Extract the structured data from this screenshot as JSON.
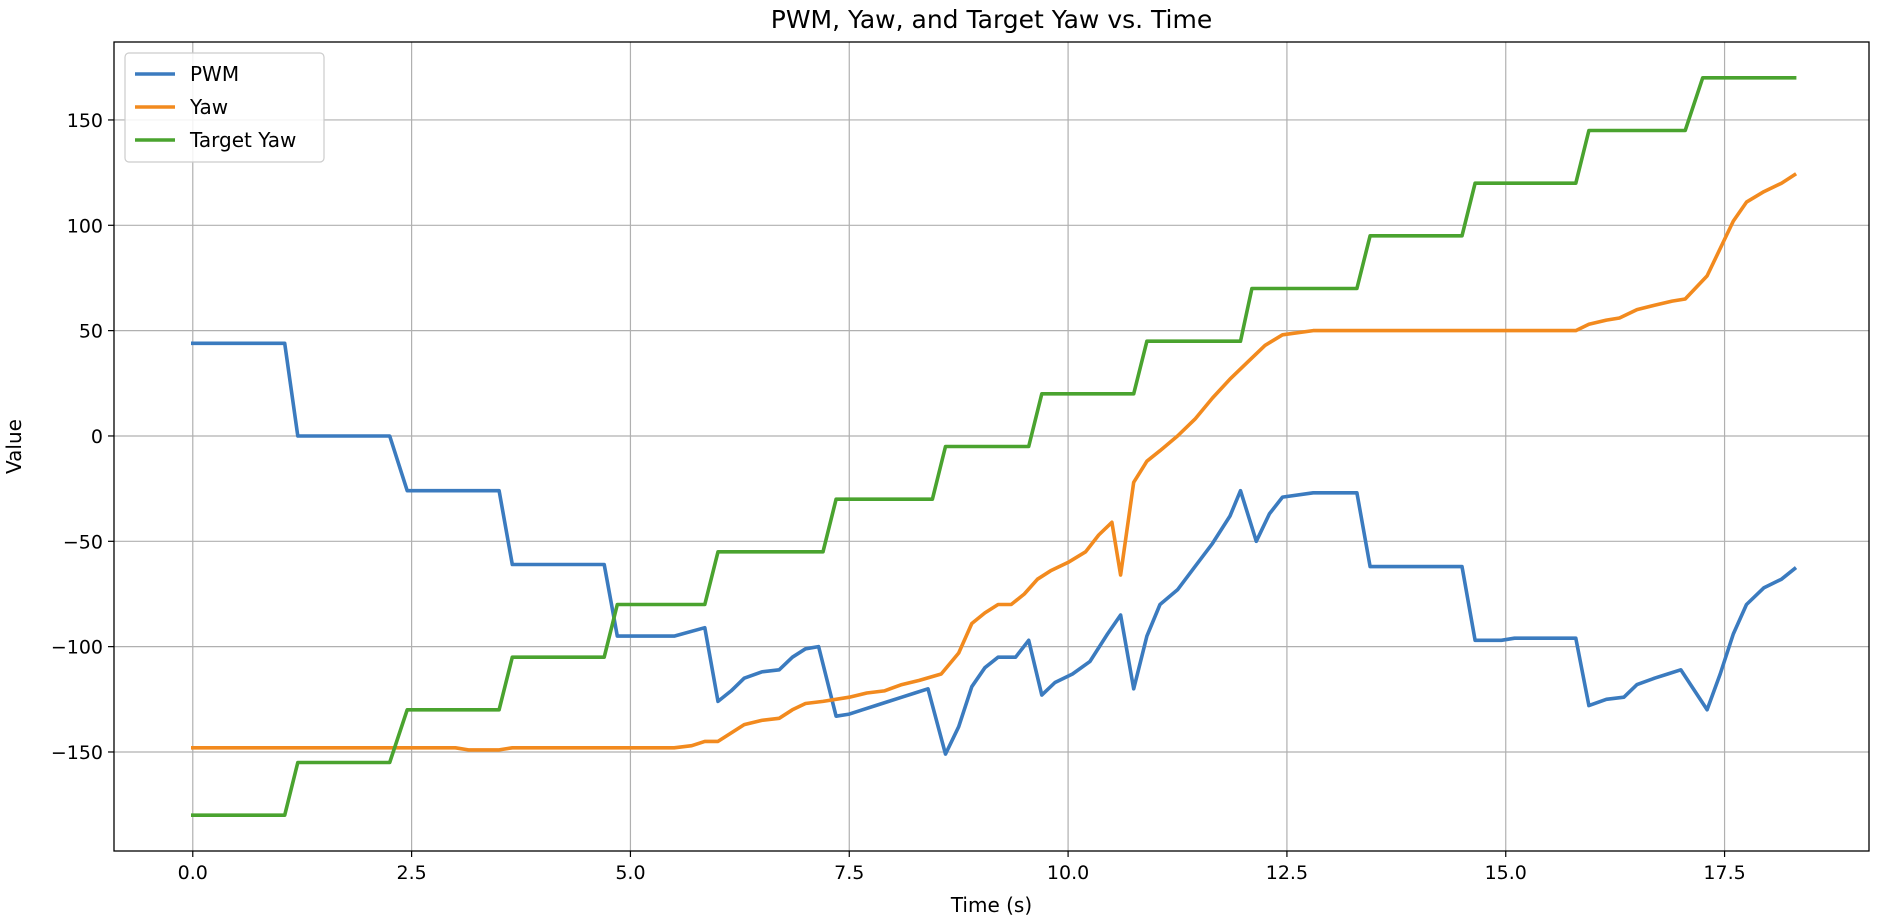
{
  "chart_data": {
    "type": "line",
    "title": "PWM, Yaw, and Target Yaw vs. Time",
    "xlabel": "Time (s)",
    "ylabel": "Value",
    "xlim": [
      -0.9,
      19.15
    ],
    "ylim": [
      -197,
      187
    ],
    "xticks": [
      0,
      2.5,
      5,
      7.5,
      10,
      12.5,
      15,
      17.5
    ],
    "xtick_labels": [
      "0.0",
      "2.5",
      "5.0",
      "7.5",
      "10.0",
      "12.5",
      "15.0",
      "17.5"
    ],
    "yticks": [
      -150,
      -100,
      -50,
      0,
      50,
      100,
      150
    ],
    "ytick_labels": [
      "−150",
      "−100",
      "−50",
      "0",
      "50",
      "100",
      "150"
    ],
    "grid": true,
    "legend_position": "top-left",
    "series": [
      {
        "name": "PWM",
        "color": "#3b7bbf",
        "x": [
          0,
          1.05,
          1.2,
          2.25,
          2.45,
          3.5,
          3.65,
          4.7,
          4.85,
          5.0,
          5.5,
          5.85,
          6.0,
          6.15,
          6.3,
          6.5,
          6.7,
          6.85,
          7.0,
          7.15,
          7.35,
          7.5,
          7.65,
          7.8,
          7.95,
          8.1,
          8.25,
          8.4,
          8.6,
          8.75,
          8.9,
          9.05,
          9.2,
          9.4,
          9.55,
          9.7,
          9.85,
          10.05,
          10.25,
          10.45,
          10.6,
          10.75,
          10.9,
          11.05,
          11.25,
          11.45,
          11.65,
          11.85,
          11.97,
          12.15,
          12.3,
          12.45,
          12.8,
          13.3,
          13.45,
          14.5,
          14.65,
          14.95,
          15.1,
          15.8,
          15.95,
          16.15,
          16.35,
          16.5,
          16.7,
          16.85,
          17.0,
          17.3,
          17.45,
          17.6,
          17.75,
          17.95,
          18.15,
          18.3
        ],
        "y": [
          44,
          44,
          0,
          0,
          -26,
          -26,
          -61,
          -61,
          -95,
          -95,
          -95,
          -91,
          -126,
          -121,
          -115,
          -112,
          -111,
          -105,
          -101,
          -100,
          -133,
          -132,
          -130,
          -128,
          -126,
          -124,
          -122,
          -120,
          -151,
          -138,
          -119,
          -110,
          -105,
          -105,
          -97,
          -123,
          -117,
          -113,
          -107,
          -94,
          -85,
          -120,
          -95,
          -80,
          -73,
          -62,
          -51,
          -38,
          -26,
          -50,
          -37,
          -29,
          -27,
          -27,
          -62,
          -62,
          -97,
          -97,
          -96,
          -96,
          -128,
          -125,
          -124,
          -118,
          -115,
          -113,
          -111,
          -130,
          -113,
          -94,
          -80,
          -72,
          -68,
          -63
        ]
      },
      {
        "name": "Yaw",
        "color": "#f28a1e",
        "x": [
          0,
          1.0,
          2.0,
          2.5,
          3.0,
          3.15,
          3.5,
          3.65,
          4.0,
          5.0,
          5.5,
          5.7,
          5.85,
          6.0,
          6.15,
          6.3,
          6.5,
          6.7,
          6.85,
          7.0,
          7.2,
          7.5,
          7.7,
          7.9,
          8.1,
          8.3,
          8.55,
          8.75,
          8.9,
          9.05,
          9.2,
          9.35,
          9.5,
          9.65,
          9.8,
          10.0,
          10.2,
          10.35,
          10.5,
          10.6,
          10.75,
          10.9,
          11.05,
          11.25,
          11.45,
          11.65,
          11.85,
          12.05,
          12.25,
          12.45,
          12.8,
          13.3,
          15.8,
          15.95,
          16.15,
          16.3,
          16.5,
          16.7,
          16.9,
          17.05,
          17.3,
          17.45,
          17.6,
          17.75,
          17.95,
          18.15,
          18.3
        ],
        "y": [
          -148,
          -148,
          -148,
          -148,
          -148,
          -149,
          -149,
          -148,
          -148,
          -148,
          -148,
          -147,
          -145,
          -145,
          -141,
          -137,
          -135,
          -134,
          -130,
          -127,
          -126,
          -124,
          -122,
          -121,
          -118,
          -116,
          -113,
          -103,
          -89,
          -84,
          -80,
          -80,
          -75,
          -68,
          -64,
          -60,
          -55,
          -47,
          -41,
          -66,
          -22,
          -12,
          -7,
          0,
          8,
          18,
          27,
          35,
          43,
          48,
          50,
          50,
          50,
          53,
          55,
          56,
          60,
          62,
          64,
          65,
          76,
          89,
          102,
          111,
          116,
          120,
          124
        ]
      },
      {
        "name": "Target Yaw",
        "color": "#4aa32f",
        "x": [
          0,
          1.05,
          1.2,
          2.25,
          2.45,
          3.5,
          3.65,
          4.7,
          4.85,
          5.85,
          6.0,
          7.2,
          7.35,
          8.45,
          8.6,
          9.55,
          9.7,
          10.75,
          10.9,
          11.97,
          12.1,
          13.3,
          13.45,
          14.5,
          14.65,
          15.8,
          15.95,
          17.05,
          17.25,
          18.3
        ],
        "y": [
          -180,
          -180,
          -155,
          -155,
          -130,
          -130,
          -105,
          -105,
          -80,
          -80,
          -55,
          -55,
          -30,
          -30,
          -5,
          -5,
          20,
          20,
          45,
          45,
          70,
          70,
          95,
          95,
          120,
          120,
          145,
          145,
          170,
          170
        ]
      }
    ]
  }
}
